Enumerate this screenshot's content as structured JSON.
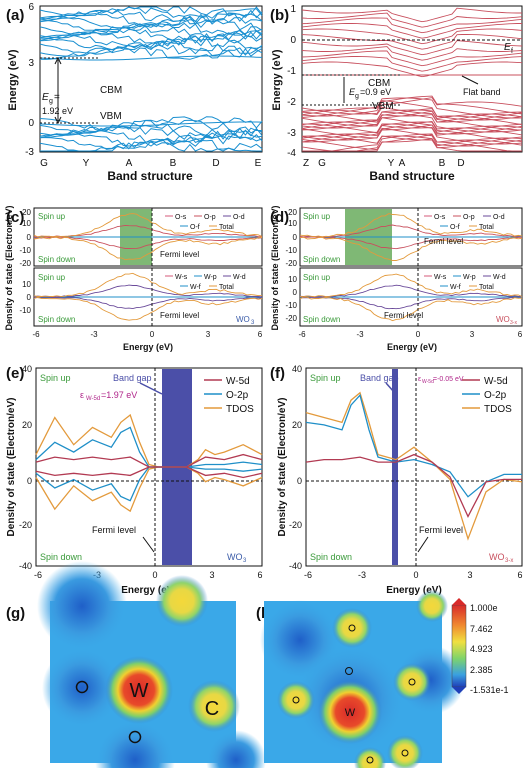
{
  "panels": {
    "a": {
      "label": "(a)",
      "ylabel": "Energy (eV)",
      "yticks": [
        "6",
        "3",
        "0",
        "-3"
      ],
      "kpoints": [
        "G",
        "Y",
        "A",
        "B",
        "D",
        "E"
      ],
      "cbm": "CBM",
      "vbm": "VBM",
      "eg_line1": "E",
      "eg_sub": "g",
      "eg_line2": "=",
      "eg_value": "1.92 eV"
    },
    "b": {
      "label": "(b)",
      "ylabel": "Energy (eV)",
      "yticks": [
        "1",
        "0",
        "-1",
        "-2",
        "-3",
        "-4"
      ],
      "kpoints": [
        "Z",
        "G",
        "Y",
        "A",
        "B",
        "D"
      ],
      "ef": "E",
      "ef_sub": "f",
      "cbm": "CBM",
      "vbm": "VBM",
      "eg": "E",
      "eg_sub": "g",
      "eg_value": "=0.9 eV",
      "flat_band": "Flat band"
    },
    "ab_xlabel": "Band structure",
    "c": {
      "label": "(c)",
      "spin_up": "Spin up",
      "spin_down": "Spin down",
      "fermi": "Fermi level",
      "material": "WO",
      "material_sub": "3",
      "legend_top": [
        "O-s",
        "O-p",
        "O-d",
        "O-f",
        "Total"
      ],
      "legend_bot": [
        "W-s",
        "W-p",
        "W-d",
        "W-f",
        "Total"
      ],
      "yticks_top": [
        "20",
        "10",
        "0",
        "-10",
        "-20"
      ],
      "yticks_bot": [
        "10",
        "0",
        "-10"
      ],
      "xticks": [
        "-6",
        "-3",
        "0",
        "3",
        "6"
      ],
      "xlabel": "Energy (eV)"
    },
    "d": {
      "label": "(d)",
      "spin_up": "Spin up",
      "spin_down": "Spin down",
      "fermi": "Fermi level",
      "material": "WO",
      "material_sub": "3-x",
      "legend_top": [
        "O-s",
        "O-p",
        "O-d",
        "O-f",
        "Total"
      ],
      "legend_bot": [
        "W-s",
        "W-p",
        "W-d",
        "W-f",
        "Total"
      ],
      "yticks_top": [
        "20",
        "10",
        "0",
        "-10",
        "-20"
      ],
      "yticks_bot": [
        "10",
        "0",
        "-10",
        "-20"
      ],
      "xticks": [
        "-6",
        "-3",
        "0",
        "3",
        "6"
      ],
      "xlabel": "Energy (eV)"
    },
    "cd_ylabel": "Density of state (Electron/eV)",
    "e": {
      "label": "(e)",
      "spin_up": "Spin up",
      "spin_down": "Spin down",
      "band_gap": "Band gap",
      "eps": "ε",
      "eps_sub": "W-5d",
      "eps_value": "=1.97 eV",
      "fermi": "Fermi level",
      "material": "WO",
      "material_sub": "3",
      "legend": [
        "W-5d",
        "O-2p",
        "TDOS"
      ],
      "yticks": [
        "40",
        "20",
        "0",
        "-20",
        "-40"
      ],
      "xticks": [
        "-6",
        "-3",
        "0",
        "3",
        "6"
      ],
      "xlabel": "Energy (eV)",
      "ylabel": "Density of state (Electron/eV)"
    },
    "f": {
      "label": "(f)",
      "spin_up": "Spin up",
      "spin_down": "Spin down",
      "band_gap": "Band gap",
      "eps": "ε",
      "eps_sub": "W-5d",
      "eps_value": "=-0.05 eV",
      "fermi": "Fermi level",
      "material": "WO",
      "material_sub": "3-x",
      "legend": [
        "W-5d",
        "O-2p",
        "TDOS"
      ],
      "yticks": [
        "40",
        "20",
        "0",
        "-20",
        "-40"
      ],
      "xticks": [
        "-6",
        "-3",
        "0",
        "3",
        "6"
      ],
      "xlabel": "Energy (eV)",
      "ylabel": "Density of state (Electron/eV)"
    },
    "g": {
      "label": "(g)",
      "atom_w": "W",
      "atom_o": "O",
      "atom_c": "C"
    },
    "h": {
      "label": "(h)",
      "atom_w": "W"
    },
    "colorbar": {
      "ticks": [
        "1.000e",
        "7.462",
        "4.923",
        "2.385",
        "-1.531e-1"
      ]
    }
  },
  "colors": {
    "band_a": "#1a8fd0",
    "band_b": "#c8505e",
    "green_box": "#7fb875",
    "gap_box": "#4b4fa8",
    "w5d": "#b23a52",
    "o2p": "#1f8fc8",
    "tdos": "#e39a3c"
  },
  "chart_data": [
    {
      "type": "line",
      "title": "",
      "panel": "e",
      "series": [
        {
          "name": "TDOS",
          "x": [
            -6,
            -5,
            -4,
            -3,
            -2,
            -1.5,
            -1,
            -0.5,
            0,
            0.5,
            1,
            2,
            2.6,
            3,
            3.5,
            4,
            5,
            6
          ],
          "y": [
            5,
            20,
            9,
            16,
            12,
            18,
            21,
            10,
            1,
            0,
            0,
            0,
            3,
            7,
            5,
            6,
            9,
            5
          ]
        },
        {
          "name": "O-2p",
          "x": [
            -6,
            -5,
            -4,
            -3,
            -2,
            -1.5,
            -1,
            -0.5,
            0,
            1,
            2,
            3,
            4,
            5,
            6
          ],
          "y": [
            3,
            10,
            6,
            11,
            8,
            14,
            16,
            6,
            0,
            0,
            0,
            1,
            1,
            2,
            1
          ]
        },
        {
          "name": "W-5d",
          "x": [
            -6,
            -5,
            -4,
            -3,
            -2,
            -1,
            0,
            1,
            2,
            3,
            4,
            5,
            6
          ],
          "y": [
            2,
            4,
            3,
            4,
            3,
            4,
            0,
            0,
            0,
            4,
            3,
            5,
            3
          ]
        }
      ]
    },
    {
      "type": "line",
      "title": "",
      "panel": "f",
      "series": [
        {
          "name": "TDOS",
          "x": [
            -6,
            -5,
            -4,
            -3.5,
            -3,
            -2.5,
            -2,
            -1,
            0,
            1,
            2,
            3,
            4,
            5,
            6
          ],
          "y": [
            22,
            20,
            18,
            27,
            30,
            18,
            5,
            3,
            8,
            2,
            -5,
            -29,
            -10,
            -5,
            -6
          ]
        },
        {
          "name": "O-2p",
          "x": [
            -6,
            -5,
            -4,
            -3.5,
            -3,
            -2.5,
            -2,
            -1,
            0,
            1,
            2,
            3,
            4,
            5,
            6
          ],
          "y": [
            18,
            17,
            15,
            25,
            29,
            15,
            4,
            2,
            3,
            1,
            -2,
            -12,
            -6,
            -3,
            -3
          ]
        },
        {
          "name": "W-5d",
          "x": [
            -6,
            -5,
            -4,
            -3,
            -2,
            -1,
            0,
            1,
            2,
            3,
            4,
            5,
            6
          ],
          "y": [
            2,
            3,
            3,
            4,
            2,
            2,
            5,
            2,
            -4,
            -20,
            -6,
            -5,
            -5
          ]
        }
      ]
    }
  ]
}
